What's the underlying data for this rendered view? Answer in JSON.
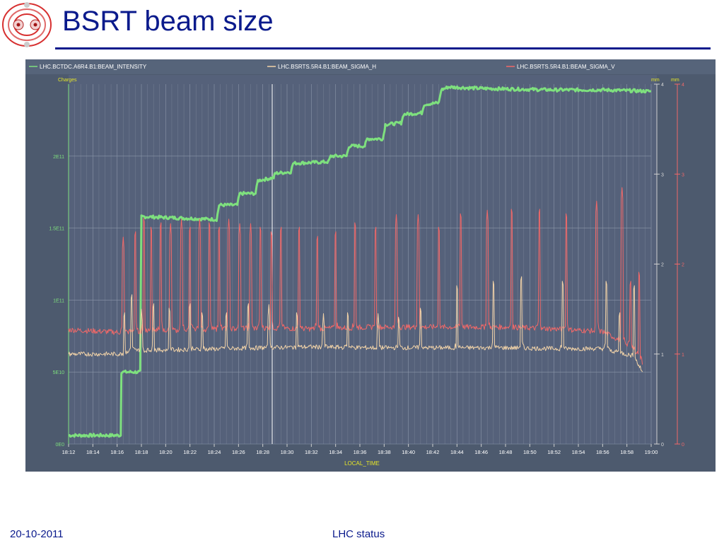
{
  "slide": {
    "title": "BSRT beam size",
    "footer_date": "20-10-2011",
    "footer_center": "LHC status"
  },
  "colors": {
    "title": "#0a1a8c",
    "panel_bg": "#4d5a6e",
    "plot_bg": "#55617a",
    "intensity": "#7ee07e",
    "sigma_h": "#f2d3a8",
    "sigma_v": "#f06868",
    "axis_label": "#e6e628"
  },
  "chart_data": {
    "type": "line",
    "legend": [
      "LHC.BCTDC.A6R4.B1:BEAM_INTENSITY",
      "LHC.BSRTS.5R4.B1:BEAM_SIGMA_H",
      "LHC.BSRTS.5R4.B1:BEAM_SIGMA_V"
    ],
    "legend_position": "top",
    "xlabel": "LOCAL_TIME",
    "x_ticks": [
      "18:12",
      "18:14",
      "18:16",
      "18:18",
      "18:20",
      "18:22",
      "18:24",
      "18:26",
      "18:28",
      "18:30",
      "18:32",
      "18:34",
      "18:36",
      "18:38",
      "18:40",
      "18:42",
      "18:44",
      "18:46",
      "18:48",
      "18:50",
      "18:52",
      "18:54",
      "18:56",
      "18:58",
      "19:00"
    ],
    "x_range_minutes": [
      0,
      48
    ],
    "y_left": {
      "label": "Charges",
      "ticks": [
        "0E0",
        "5E10",
        "1E11",
        "1.5E11",
        "2E11"
      ],
      "range": [
        0,
        250000000000.0
      ]
    },
    "y_right_h": {
      "label": "mm",
      "ticks": [
        "0",
        "1",
        "2",
        "3",
        "4"
      ],
      "range": [
        0,
        4
      ]
    },
    "y_right_v": {
      "label": "mm",
      "ticks": [
        "0",
        "1",
        "2",
        "3",
        "4"
      ],
      "range": [
        0,
        4
      ]
    },
    "grid": true,
    "series": [
      {
        "name": "LHC.BCTDC.A6R4.B1:BEAM_INTENSITY",
        "axis": "left",
        "color": "#7ee07e",
        "points": [
          [
            0,
            6000000000.0
          ],
          [
            4.3,
            6000000000.0
          ],
          [
            4.35,
            50000000000.0
          ],
          [
            5.9,
            50000000000.0
          ],
          [
            6.0,
            158000000000.0
          ],
          [
            12.2,
            156000000000.0
          ],
          [
            12.4,
            166000000000.0
          ],
          [
            13.9,
            166000000000.0
          ],
          [
            14.1,
            174000000000.0
          ],
          [
            15.4,
            174000000000.0
          ],
          [
            15.6,
            183000000000.0
          ],
          [
            16.9,
            185000000000.0
          ],
          [
            17.0,
            188000000000.0
          ],
          [
            18.3,
            189000000000.0
          ],
          [
            18.5,
            195000000000.0
          ],
          [
            21.4,
            196000000000.0
          ],
          [
            21.6,
            200000000000.0
          ],
          [
            22.9,
            200000000000.0
          ],
          [
            23.1,
            207000000000.0
          ],
          [
            24.4,
            207000000000.0
          ],
          [
            24.6,
            212000000000.0
          ],
          [
            25.9,
            212000000000.0
          ],
          [
            26.1,
            222000000000.0
          ],
          [
            27.4,
            223000000000.0
          ],
          [
            27.6,
            229000000000.0
          ],
          [
            29.1,
            230000000000.0
          ],
          [
            29.3,
            236000000000.0
          ],
          [
            30.5,
            237000000000.0
          ],
          [
            30.7,
            246000000000.0
          ],
          [
            31.3,
            248000000000.0
          ],
          [
            34,
            247000000000.0
          ],
          [
            40,
            246000000000.0
          ],
          [
            44,
            246000000000.0
          ],
          [
            48,
            245000000000.0
          ]
        ]
      },
      {
        "name": "LHC.BSRTS.5R4.B1:BEAM_SIGMA_H",
        "axis": "right_h",
        "color": "#f2d3a8",
        "baseline": [
          [
            0,
            1.0
          ],
          [
            4.5,
            1.0
          ],
          [
            5,
            1.04
          ],
          [
            10,
            1.05
          ],
          [
            16,
            1.07
          ],
          [
            20,
            1.08
          ],
          [
            25,
            1.07
          ],
          [
            30,
            1.07
          ],
          [
            36,
            1.07
          ],
          [
            40,
            1.06
          ],
          [
            44,
            1.06
          ],
          [
            46.5,
            0.98
          ],
          [
            47.3,
            0.8
          ]
        ],
        "spikes": [
          [
            4.6,
            1.5
          ],
          [
            5.2,
            1.7
          ],
          [
            6.0,
            1.5
          ],
          [
            7.0,
            1.6
          ],
          [
            8.3,
            1.55
          ],
          [
            10.0,
            1.6
          ],
          [
            11.0,
            1.5
          ],
          [
            13.0,
            1.5
          ],
          [
            14.8,
            1.6
          ],
          [
            16.5,
            1.55
          ],
          [
            18.8,
            1.5
          ],
          [
            21.0,
            1.45
          ],
          [
            23.0,
            1.5
          ],
          [
            25.5,
            1.45
          ],
          [
            27.2,
            1.45
          ],
          [
            29.0,
            1.55
          ],
          [
            32.0,
            1.8
          ],
          [
            35.0,
            1.85
          ],
          [
            37.3,
            1.9
          ],
          [
            40.7,
            1.85
          ],
          [
            44.3,
            1.85
          ],
          [
            45.4,
            1.5
          ],
          [
            46.6,
            1.8
          ]
        ]
      },
      {
        "name": "LHC.BSRTS.5R4.B1:BEAM_SIGMA_V",
        "axis": "right_v",
        "color": "#f06868",
        "baseline": [
          [
            0,
            1.27
          ],
          [
            4.5,
            1.24
          ],
          [
            5,
            1.25
          ],
          [
            10,
            1.27
          ],
          [
            16,
            1.29
          ],
          [
            20,
            1.28
          ],
          [
            25,
            1.3
          ],
          [
            30,
            1.3
          ],
          [
            36,
            1.3
          ],
          [
            40,
            1.28
          ],
          [
            44,
            1.25
          ],
          [
            46.5,
            1.08
          ],
          [
            47.3,
            0.9
          ]
        ],
        "spikes": [
          [
            4.5,
            2.3
          ],
          [
            5.5,
            2.4
          ],
          [
            6.2,
            2.55
          ],
          [
            6.8,
            2.45
          ],
          [
            7.6,
            2.5
          ],
          [
            8.4,
            2.45
          ],
          [
            9.3,
            2.5
          ],
          [
            10.0,
            2.45
          ],
          [
            10.8,
            2.5
          ],
          [
            11.6,
            2.5
          ],
          [
            12.4,
            2.45
          ],
          [
            13.2,
            2.5
          ],
          [
            14.1,
            2.45
          ],
          [
            15.0,
            2.45
          ],
          [
            15.8,
            2.45
          ],
          [
            16.7,
            2.4
          ],
          [
            17.5,
            2.45
          ],
          [
            19.0,
            2.45
          ],
          [
            20.5,
            2.35
          ],
          [
            22.0,
            2.4
          ],
          [
            23.6,
            2.5
          ],
          [
            25.3,
            2.45
          ],
          [
            27.0,
            2.55
          ],
          [
            28.8,
            2.55
          ],
          [
            30.5,
            2.45
          ],
          [
            32.3,
            2.6
          ],
          [
            34.5,
            2.6
          ],
          [
            36.5,
            2.65
          ],
          [
            38.8,
            2.65
          ],
          [
            41.0,
            2.6
          ],
          [
            43.5,
            2.7
          ],
          [
            45.6,
            2.85
          ],
          [
            46.3,
            1.85
          ],
          [
            47.0,
            1.95
          ]
        ]
      }
    ]
  }
}
